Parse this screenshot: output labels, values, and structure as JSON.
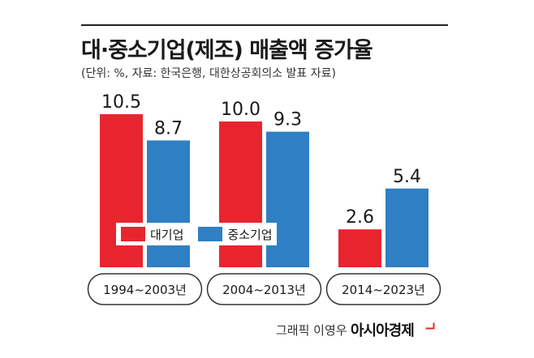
{
  "title": "대·중소기업(제조) 매출액 증가율",
  "subtitle": "(단위: %, 자료: 한국은행, 대한상공회의소 발표 자료)",
  "credit": {
    "graphic": "그래픽 이영우",
    "brand": "아시아경제"
  },
  "colors": {
    "large": "#e8252f",
    "sme": "#2f7fc4",
    "rule": "#222222"
  },
  "chart_data": {
    "type": "bar",
    "categories": [
      "1994~2003년",
      "2004~2013년",
      "2014~2023년"
    ],
    "series": [
      {
        "name": "대기업",
        "values": [
          10.5,
          10.0,
          2.6
        ]
      },
      {
        "name": "중소기업",
        "values": [
          8.7,
          9.3,
          5.4
        ]
      }
    ],
    "value_labels": [
      [
        "10.5",
        "8.7"
      ],
      [
        "10.0",
        "9.3"
      ],
      [
        "2.6",
        "5.4"
      ]
    ],
    "ylim": [
      0,
      11
    ],
    "grid": false,
    "legend": "center-left"
  }
}
